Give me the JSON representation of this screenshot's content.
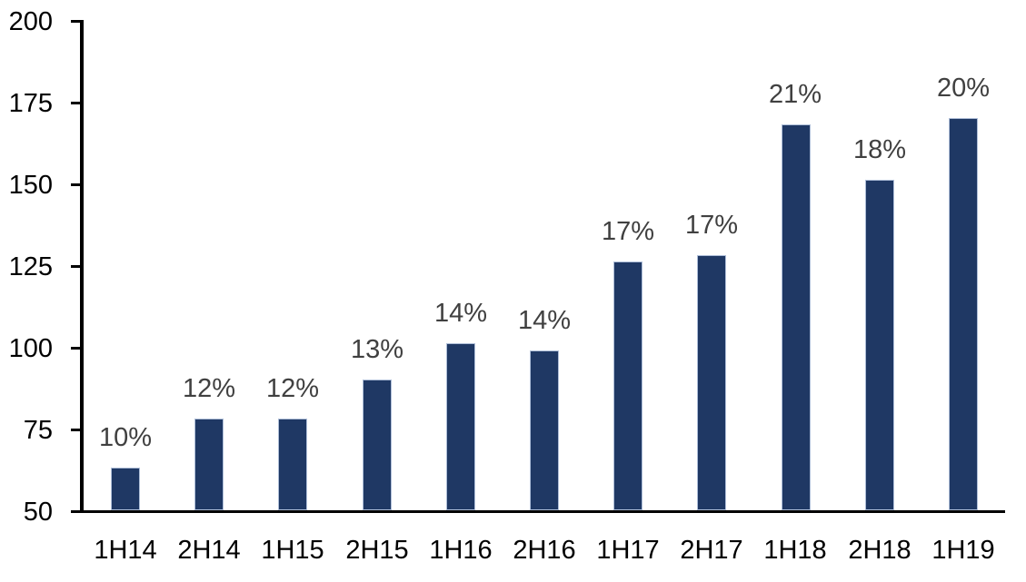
{
  "chart_data": {
    "type": "bar",
    "title": "",
    "xlabel": "",
    "ylabel": "",
    "categories": [
      "1H14",
      "2H14",
      "1H15",
      "2H15",
      "1H16",
      "2H16",
      "1H17",
      "2H17",
      "1H18",
      "2H18",
      "1H19"
    ],
    "values": [
      63,
      78,
      78,
      90,
      101,
      99,
      126,
      128,
      168,
      151,
      170
    ],
    "data_labels": [
      "10%",
      "12%",
      "12%",
      "13%",
      "14%",
      "14%",
      "17%",
      "17%",
      "21%",
      "18%",
      "20%"
    ],
    "ylim": [
      50,
      200
    ],
    "yticks": [
      50,
      75,
      100,
      125,
      150,
      175,
      200
    ],
    "grid": false,
    "legend": null,
    "colors": {
      "bar_fill": "#1F3864",
      "bar_border": "#AEBED8",
      "data_label": "#404040",
      "axis": "#000000",
      "background": "#FFFFFF"
    }
  }
}
